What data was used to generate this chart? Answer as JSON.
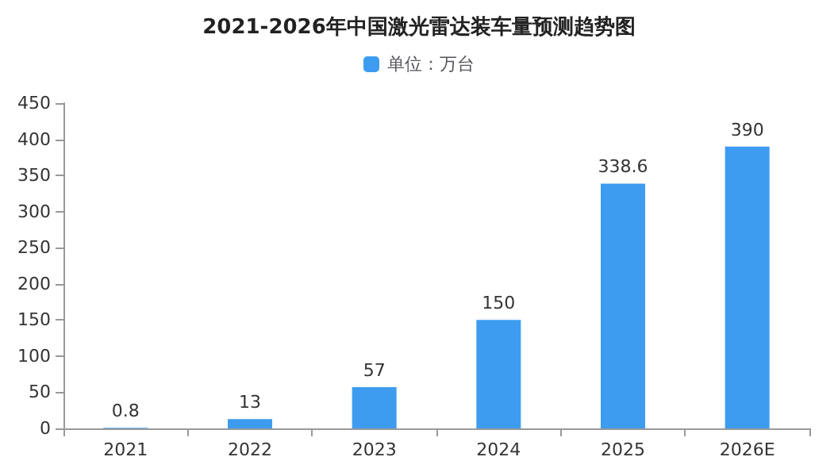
{
  "chart_data": {
    "type": "bar",
    "title": "2021-2026年中国激光雷达装车量预测趋势图",
    "categories": [
      "2021",
      "2022",
      "2023",
      "2024",
      "2025",
      "2026E"
    ],
    "series": [
      {
        "name": "单位：万台",
        "color": "#3d9cf0",
        "values": [
          0.8,
          13,
          57,
          150,
          338.6,
          390
        ]
      }
    ],
    "ylim": [
      0,
      450
    ],
    "yticks": [
      0,
      50,
      100,
      150,
      200,
      250,
      300,
      350,
      400,
      450
    ],
    "grid": false,
    "legend": "top",
    "data_labels": true
  }
}
